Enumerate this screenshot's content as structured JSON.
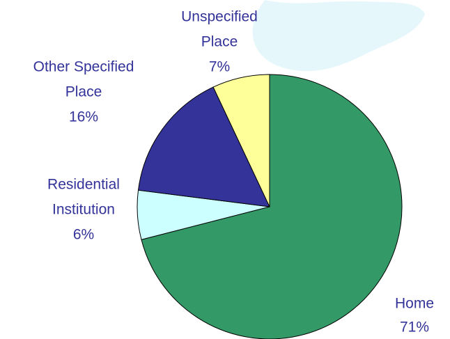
{
  "chart_data": {
    "type": "pie",
    "categories": [
      [
        "Home"
      ],
      [
        "Residential",
        "Institution"
      ],
      [
        "Other Specified",
        "Place"
      ],
      [
        "Unspecified",
        "Place"
      ]
    ],
    "values": [
      71,
      6,
      16,
      7
    ],
    "value_labels": [
      "71%",
      "6%",
      "16%",
      "7%"
    ],
    "colors": [
      "#339966",
      "#ccffff",
      "#333399",
      "#ffff99"
    ],
    "start_angle": 0,
    "direction": "clockwise"
  }
}
